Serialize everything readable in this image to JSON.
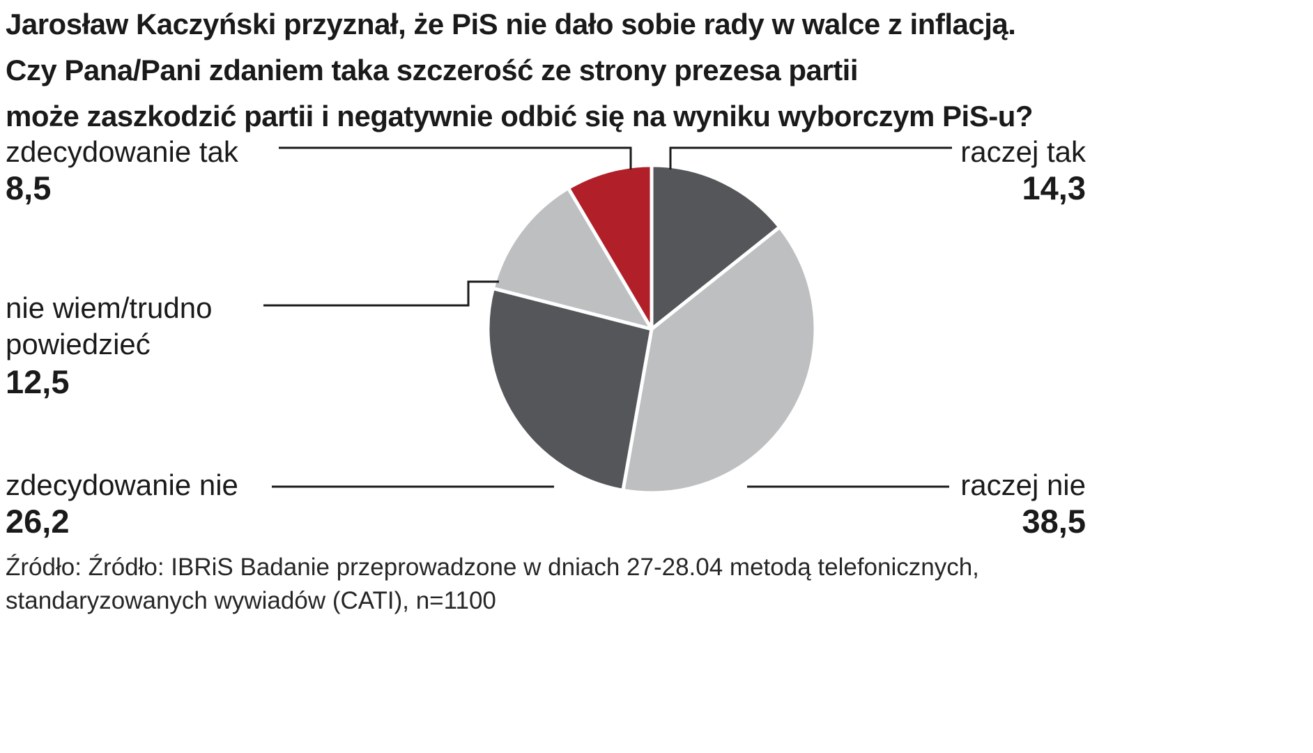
{
  "title": {
    "line1": "Jarosław Kaczyński przyznał, że PiS nie dało sobie rady w walce z inflacją.",
    "line2": "Czy Pana/Pani zdaniem taka szczerość ze strony prezesa partii",
    "line3": "może zaszkodzić partii i negatywnie odbić się na wyniku wyborczym PiS-u?"
  },
  "chart_data": {
    "type": "pie",
    "title": "Jarosław Kaczyński przyznał, że PiS nie dało sobie rady w walce z inflacją. Czy Pana/Pani zdaniem taka szczerość ze strony prezesa partii może zaszkodzić partii i negatywnie odbić się na wyniku wyborczym PiS-u?",
    "direction": "clockwise",
    "start_angle_deg": 0,
    "legend_position": "callout-labels",
    "slices": [
      {
        "label": "raczej tak",
        "value": 14.3,
        "display": "14,3",
        "color": "#55565a"
      },
      {
        "label": "raczej nie",
        "value": 38.5,
        "display": "38,5",
        "color": "#bdbfc1"
      },
      {
        "label": "zdecydowanie nie",
        "value": 26.2,
        "display": "26,2",
        "color": "#55565a"
      },
      {
        "label": "nie wiem/trudno powiedzieć",
        "value": 12.5,
        "display": "12,5",
        "color": "#bdbfc1"
      },
      {
        "label": "zdecydowanie tak",
        "value": 8.5,
        "display": "8,5",
        "color": "#b11f29"
      }
    ],
    "source": "Źródło: Źródło: IBRiS Badanie przeprowadzone w dniach 27-28.04 metodą telefonicznych, standaryzowanych wywiadów (CATI), n=1100"
  },
  "labels": {
    "zdecydowanie_tak": {
      "text": "zdecydowanie tak",
      "value": "8,5"
    },
    "raczej_tak": {
      "text": "raczej tak",
      "value": "14,3"
    },
    "nie_wiem": {
      "line1": "nie wiem/trudno",
      "line2": "powiedzieć",
      "value": "12,5"
    },
    "zdecydowanie_nie": {
      "text": "zdecydowanie nie",
      "value": "26,2"
    },
    "raczej_nie": {
      "text": "raczej nie",
      "value": "38,5"
    }
  },
  "source": {
    "line1": "Źródło: Źródło: IBRiS Badanie przeprowadzone w dniach 27-28.04 metodą telefonicznych,",
    "line2": "standaryzowanych wywiadów (CATI), n=1100"
  },
  "colors": {
    "dark_gray": "#55565a",
    "light_gray": "#bdbfc1",
    "red": "#b11f29",
    "text": "#1a1a1a",
    "background": "#ffffff"
  }
}
